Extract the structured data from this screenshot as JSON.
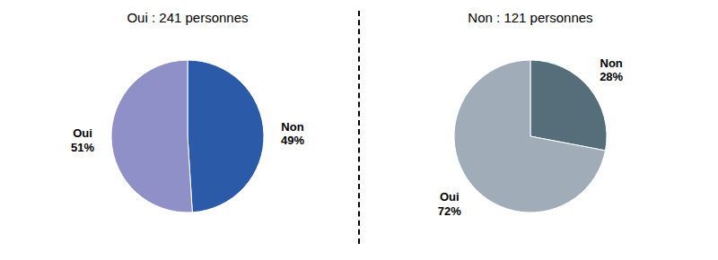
{
  "chart_data": [
    {
      "type": "pie",
      "title": "Oui : 241 personnes",
      "categories": [
        "Non",
        "Oui"
      ],
      "values": [
        49,
        51
      ],
      "value_labels": [
        "49%",
        "51%"
      ],
      "colors": [
        "#2a5aa8",
        "#9090c8"
      ],
      "data_labels": true
    },
    {
      "type": "pie",
      "title": "Non : 121 personnes",
      "categories": [
        "Non",
        "Oui"
      ],
      "values": [
        28,
        72
      ],
      "value_labels": [
        "28%",
        "72%"
      ],
      "colors": [
        "#566d7a",
        "#a0adb8"
      ],
      "data_labels": true
    }
  ]
}
